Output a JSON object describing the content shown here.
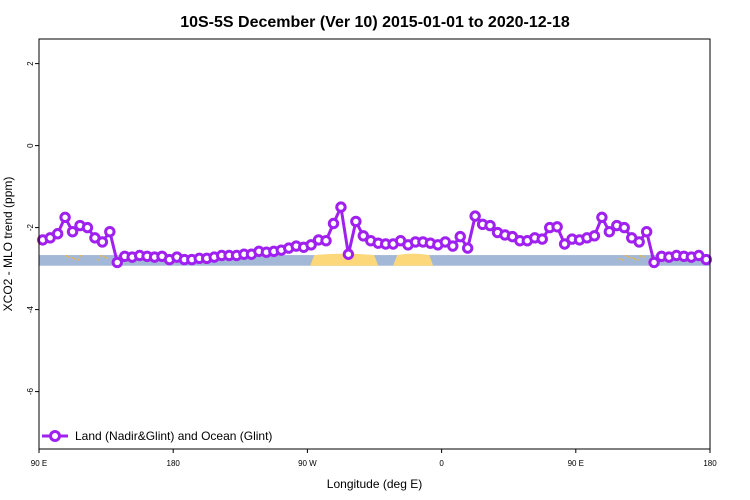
{
  "chart_data": {
    "type": "line",
    "title": "10S-5S December (Ver 10)   2015-01-01 to 2020-12-18",
    "xlabel": "Longitude (deg E)",
    "ylabel": "XCO2 - MLO trend (ppm)",
    "xlim": [
      90,
      450
    ],
    "ylim": [
      -7.4,
      2.6
    ],
    "x_ticks": [
      {
        "value": 90,
        "label": "90 E"
      },
      {
        "value": 162,
        "label": "180"
      },
      {
        "value": 234,
        "label": "90 W"
      },
      {
        "value": 306,
        "label": "0"
      },
      {
        "value": 378,
        "label": "90 E"
      },
      {
        "value": 450,
        "label": "180"
      }
    ],
    "y_ticks": [
      {
        "value": 2,
        "label": "2"
      },
      {
        "value": 0,
        "label": "0"
      },
      {
        "value": -2,
        "label": "-2"
      },
      {
        "value": -4,
        "label": "-4"
      },
      {
        "value": -6,
        "label": "-6"
      }
    ],
    "grid": false,
    "legend_position": "bottom-left",
    "surface_band": {
      "y_top": -2.67,
      "y_bottom": -2.93,
      "ocean_color": "#a3b8d6",
      "land_color": "#fdd87a",
      "land_segments": [
        [
          235.5,
          272
        ],
        [
          280,
          301.5
        ]
      ],
      "land_specks": [
        [
          104,
          113
        ],
        [
          121,
          126
        ],
        [
          401,
          415
        ],
        [
          423,
          430
        ]
      ]
    },
    "series": [
      {
        "name": "Land (Nadir&Glint) and Ocean (Glint)",
        "color": "#a020f0",
        "x": [
          92,
          96,
          100,
          104,
          108,
          112,
          116,
          120,
          124,
          128,
          132,
          136,
          140,
          144,
          148,
          152,
          156,
          160,
          164,
          168,
          172,
          176,
          180,
          184,
          188,
          192,
          196,
          200,
          204,
          208,
          212,
          216,
          220,
          224,
          228,
          232,
          236,
          240,
          244,
          248,
          252,
          256,
          260,
          264,
          268,
          272,
          276,
          280,
          284,
          288,
          292,
          296,
          300,
          304,
          308,
          312,
          316,
          320,
          324,
          328,
          332,
          336,
          340,
          344,
          348,
          352,
          356,
          360,
          364,
          368,
          372,
          376,
          380,
          384,
          388,
          392,
          396,
          400,
          404,
          408,
          412,
          416,
          420,
          424,
          428,
          432,
          436,
          440,
          444,
          448
        ],
        "y": [
          -2.3,
          -2.25,
          -2.15,
          -1.75,
          -2.1,
          -1.95,
          -2.0,
          -2.25,
          -2.35,
          -2.1,
          -2.85,
          -2.7,
          -2.72,
          -2.68,
          -2.7,
          -2.72,
          -2.7,
          -2.78,
          -2.72,
          -2.78,
          -2.78,
          -2.75,
          -2.75,
          -2.72,
          -2.68,
          -2.68,
          -2.68,
          -2.65,
          -2.65,
          -2.58,
          -2.6,
          -2.58,
          -2.55,
          -2.5,
          -2.45,
          -2.48,
          -2.42,
          -2.3,
          -2.32,
          -1.9,
          -1.5,
          -2.65,
          -1.85,
          -2.2,
          -2.32,
          -2.38,
          -2.4,
          -2.4,
          -2.32,
          -2.42,
          -2.35,
          -2.35,
          -2.38,
          -2.42,
          -2.35,
          -2.45,
          -2.22,
          -2.5,
          -1.72,
          -1.92,
          -1.95,
          -2.12,
          -2.18,
          -2.22,
          -2.32,
          -2.32,
          -2.25,
          -2.28,
          -2.0,
          -1.98,
          -2.4,
          -2.28,
          -2.3,
          -2.25,
          -2.2,
          -1.75,
          -2.1,
          -1.95,
          -2.0,
          -2.25,
          -2.35,
          -2.1,
          -2.85,
          -2.7,
          -2.72,
          -2.68,
          -2.7,
          -2.72,
          -2.68,
          -2.78
        ]
      }
    ]
  }
}
